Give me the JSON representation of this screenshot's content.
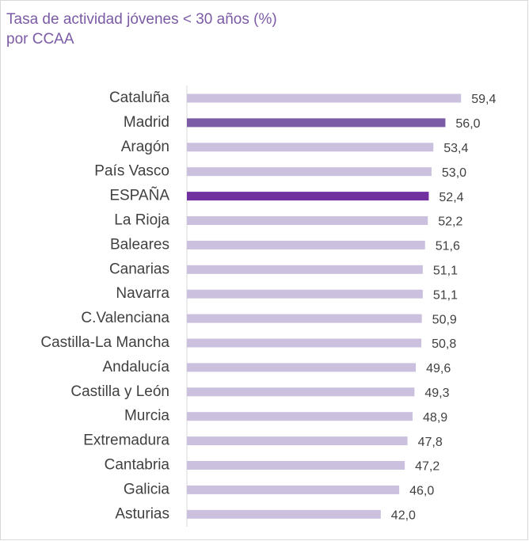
{
  "chart_data": {
    "type": "bar",
    "orientation": "horizontal",
    "title": "Tasa de actividad jóvenes < 30 años (%)",
    "subtitle": "por CCAA",
    "categories": [
      "Cataluña",
      "Madrid",
      "Aragón",
      "País Vasco",
      "ESPAÑA",
      "La Rioja",
      "Baleares",
      "Canarias",
      "Navarra",
      "C.Valenciana",
      "Castilla-La Mancha",
      "Andalucía",
      "Castilla y León",
      "Murcia",
      "Extremadura",
      "Cantabria",
      "Galicia",
      "Asturias"
    ],
    "values": [
      59.4,
      56.0,
      53.4,
      53.0,
      52.4,
      52.2,
      51.6,
      51.1,
      51.1,
      50.9,
      50.8,
      49.6,
      49.3,
      48.9,
      47.8,
      47.2,
      46.0,
      42.0
    ],
    "value_labels": [
      "59,4",
      "56,0",
      "53,4",
      "53,0",
      "52,4",
      "52,2",
      "51,6",
      "51,1",
      "51,1",
      "50,9",
      "50,8",
      "49,6",
      "49,3",
      "48,9",
      "47,8",
      "47,2",
      "46,0",
      "42,0"
    ],
    "colors": [
      "#cbc1de",
      "#7b5aa6",
      "#cbc1de",
      "#cbc1de",
      "#7030a0",
      "#cbc1de",
      "#cbc1de",
      "#cbc1de",
      "#cbc1de",
      "#cbc1de",
      "#cbc1de",
      "#cbc1de",
      "#cbc1de",
      "#cbc1de",
      "#cbc1de",
      "#cbc1de",
      "#cbc1de",
      "#cbc1de"
    ],
    "xlim": [
      0,
      70
    ]
  }
}
